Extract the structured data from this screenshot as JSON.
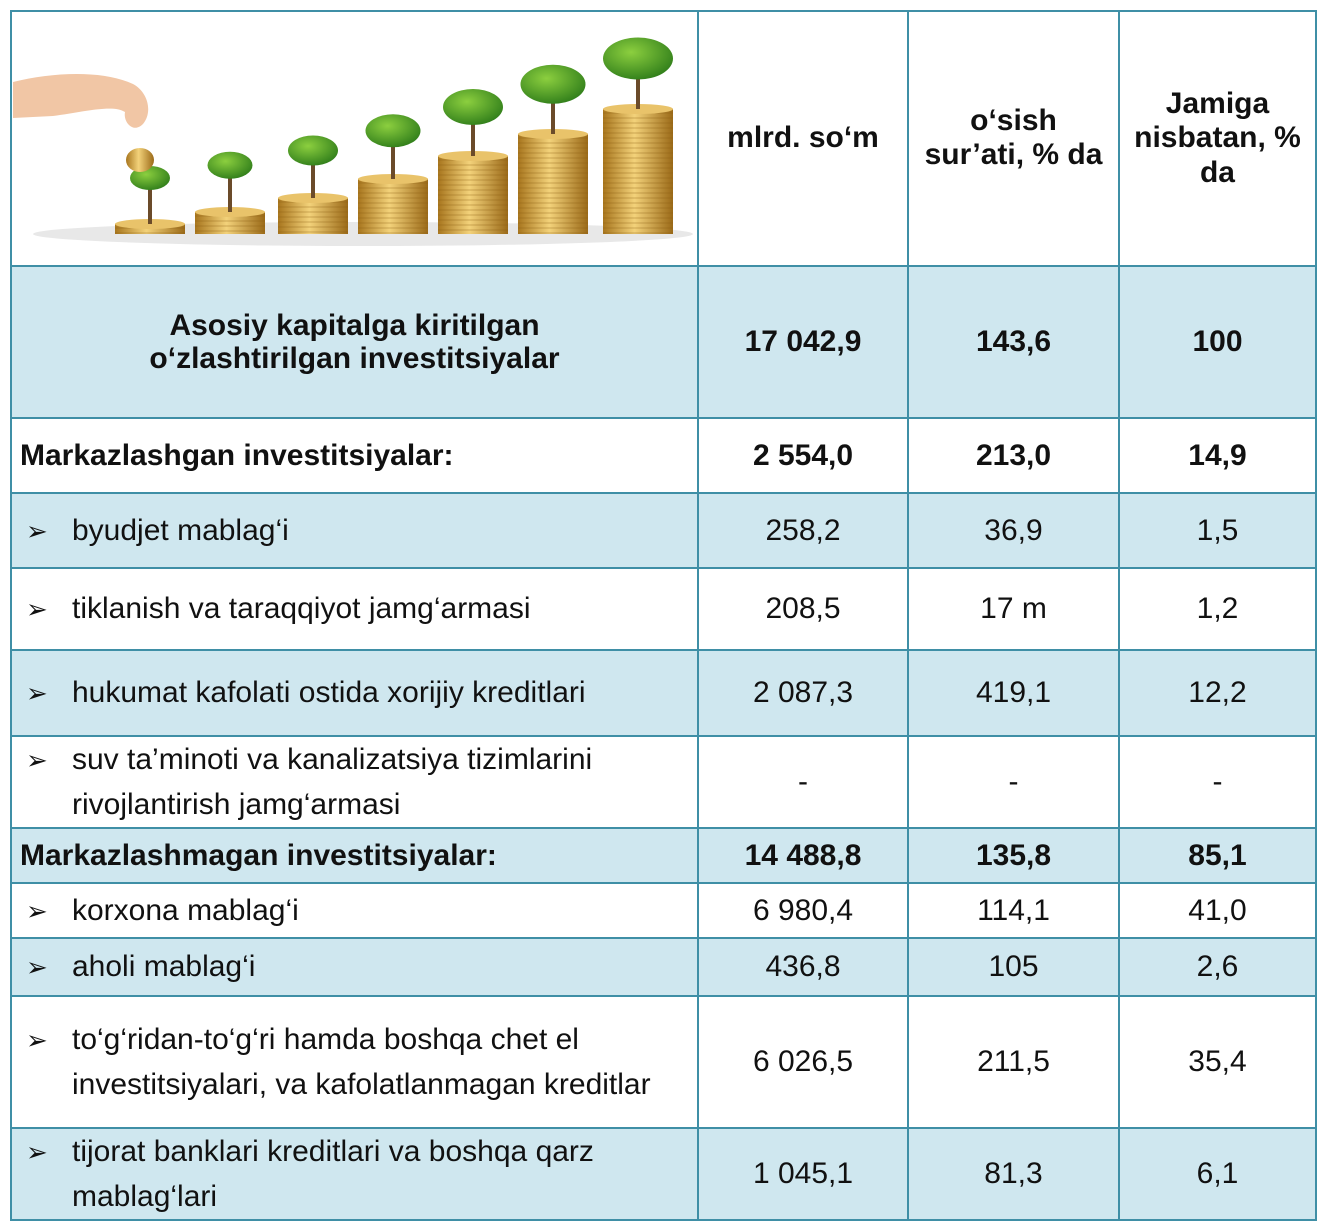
{
  "table": {
    "header": [
      "mlrd. so‘m",
      "o‘sish sur’ati, % da",
      "Jamiga nisbatan, % da"
    ],
    "total": {
      "label": "Asosiy kapitalga kiritilgan o‘zlashtirilgan investitsiyalar",
      "values": [
        "17 042,9",
        "143,6",
        "100"
      ]
    },
    "sections": [
      {
        "label": "Markazlashgan investitsiyalar:",
        "values": [
          "2 554,0",
          "213,0",
          "14,9"
        ],
        "items": [
          {
            "label": "byudjet mablag‘i",
            "values": [
              "258,2",
              "36,9",
              "1,5"
            ]
          },
          {
            "label": "tiklanish va taraqqiyot jamg‘armasi",
            "values": [
              "208,5",
              "17 m",
              "1,2"
            ]
          },
          {
            "label": "hukumat kafolati ostida xorijiy kreditlari",
            "values": [
              "2 087,3",
              "419,1",
              "12,2"
            ]
          },
          {
            "label": "suv ta’minoti va kanalizatsiya tizimlarini rivojlantirish jamg‘armasi",
            "values": [
              "-",
              "-",
              "-"
            ]
          }
        ]
      },
      {
        "label": "Markazlashmagan investitsiyalar:",
        "values": [
          "14 488,8",
          "135,8",
          "85,1"
        ],
        "items": [
          {
            "label": "korxona mablag‘i",
            "values": [
              "6 980,4",
              "114,1",
              "41,0"
            ]
          },
          {
            "label": "aholi mablag‘i",
            "values": [
              "436,8",
              "105",
              "2,6"
            ]
          },
          {
            "label": "to‘g‘ridan-to‘g‘ri hamda boshqa chet el investitsiyalari, va kafolatlanmagan kreditlar",
            "values": [
              "6 026,5",
              "211,5",
              "35,4"
            ]
          },
          {
            "label": "tijorat banklari kreditlari va boshqa qarz mablag‘lari",
            "values": [
              "1 045,1",
              "81,3",
              "6,1"
            ]
          }
        ]
      }
    ]
  }
}
